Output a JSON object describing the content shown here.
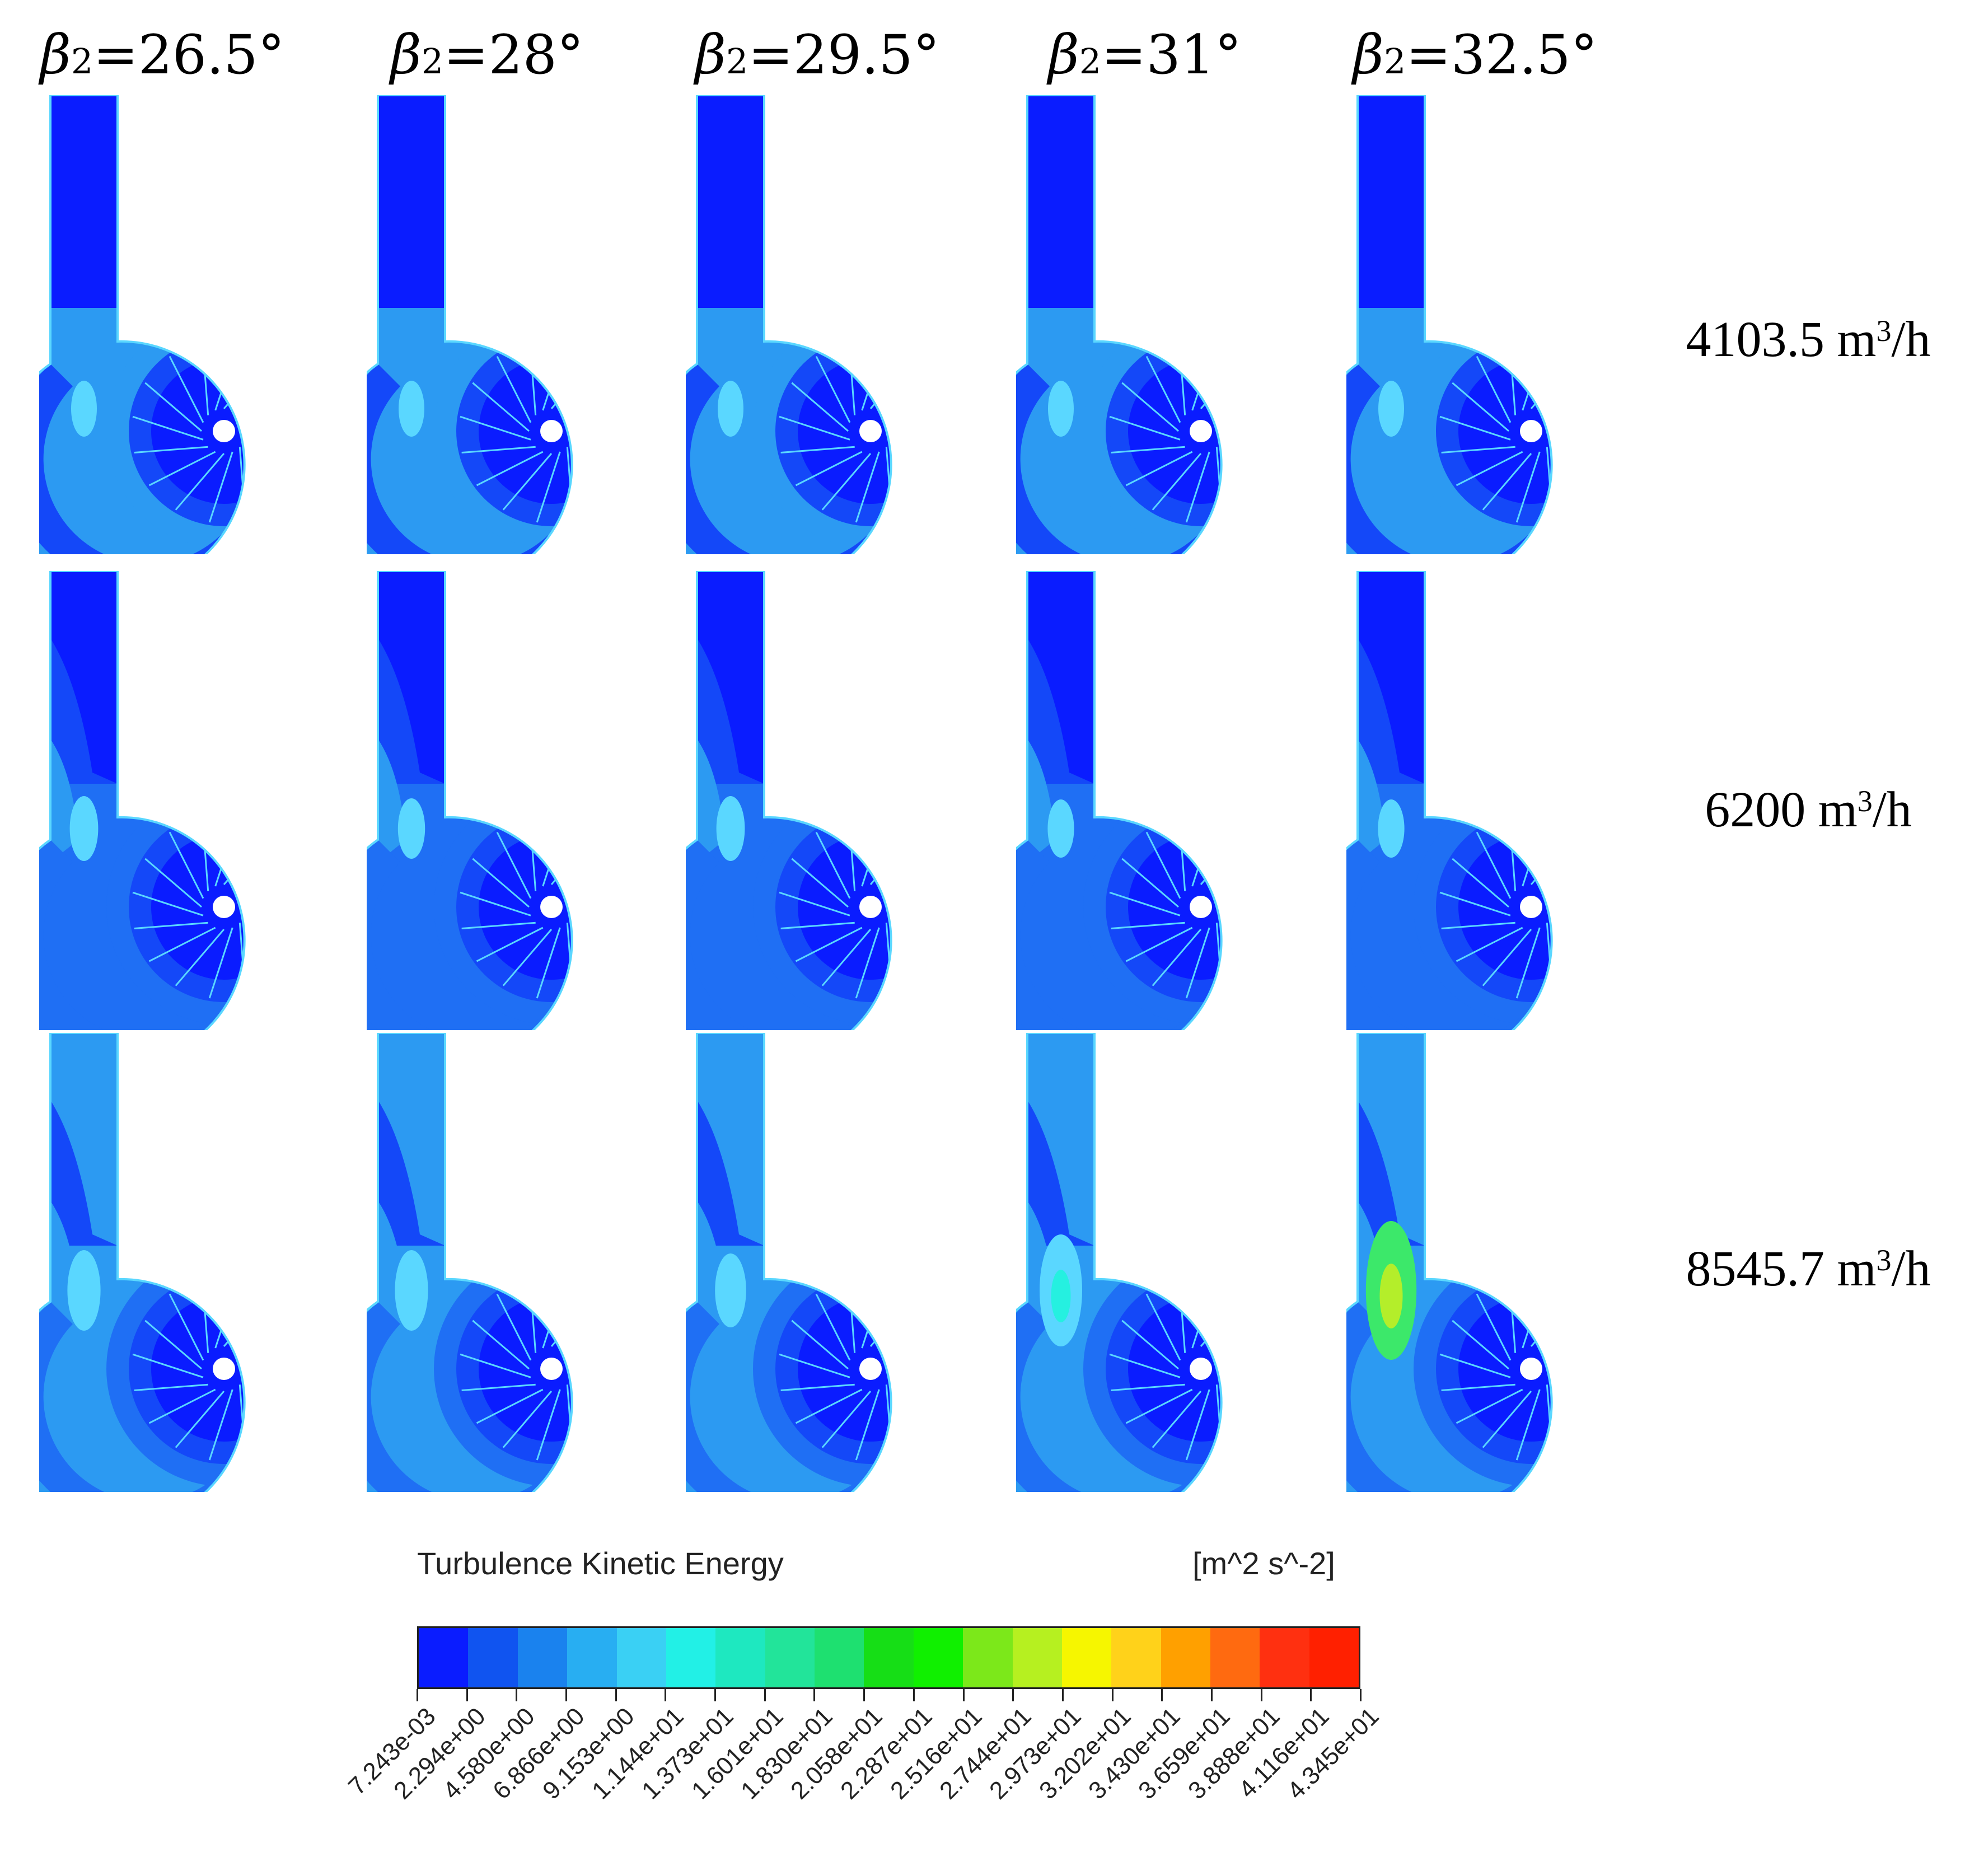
{
  "columns": [
    {
      "symbol": "β",
      "subscript": "2",
      "value": "=26.5°"
    },
    {
      "symbol": "β",
      "subscript": "2",
      "value": "=28°"
    },
    {
      "symbol": "β",
      "subscript": "2",
      "value": "=29.5°"
    },
    {
      "symbol": "β",
      "subscript": "2",
      "value": "=31°"
    },
    {
      "symbol": "β",
      "subscript": "2",
      "value": "=32.5°"
    }
  ],
  "rows": [
    {
      "flow": "4103.5 m",
      "superscript": "3",
      "unit": "/h"
    },
    {
      "flow": "6200 m",
      "superscript": "3",
      "unit": "/h"
    },
    {
      "flow": "8545.7 m",
      "superscript": "3",
      "unit": "/h"
    }
  ],
  "legend": {
    "title": "Turbulence Kinetic Energy",
    "unit": "[m^2 s^-2]",
    "ticks": [
      "7.243e-03",
      "2.294e+00",
      "4.580e+00",
      "6.866e+00",
      "9.153e+00",
      "1.144e+01",
      "1.373e+01",
      "1.601e+01",
      "1.830e+01",
      "2.058e+01",
      "2.287e+01",
      "2.516e+01",
      "2.744e+01",
      "2.973e+01",
      "3.202e+01",
      "3.430e+01",
      "3.659e+01",
      "3.888e+01",
      "4.116e+01",
      "4.345e+01"
    ],
    "colors": [
      "#0a1cff",
      "#1054f0",
      "#1a82ee",
      "#28aef2",
      "#3ad0f4",
      "#22f0e6",
      "#1ee8c0",
      "#22e49a",
      "#1ee070",
      "#16de16",
      "#10f000",
      "#7ce81a",
      "#b6f020",
      "#f6f600",
      "#ffd21a",
      "#ffa000",
      "#ff6a10",
      "#ff3010",
      "#ff2000"
    ],
    "level_palette": [
      "#0a1cff",
      "#1448f8",
      "#1f6ff4",
      "#2c9af2",
      "#5ad7ff",
      "#25f0e0",
      "#3ce86a",
      "#b4ee2a",
      "#ffe800"
    ]
  },
  "cells": [
    [
      {
        "peak": 0.05
      },
      {
        "peak": 0.05
      },
      {
        "peak": 0.05
      },
      {
        "peak": 0.05
      },
      {
        "peak": 0.05
      }
    ],
    [
      {
        "peak": 0.09
      },
      {
        "peak": 0.07
      },
      {
        "peak": 0.09
      },
      {
        "peak": 0.06
      },
      {
        "peak": 0.06
      }
    ],
    [
      {
        "peak": 0.16
      },
      {
        "peak": 0.16
      },
      {
        "peak": 0.13
      },
      {
        "peak": 0.3
      },
      {
        "peak": 0.42
      }
    ]
  ]
}
